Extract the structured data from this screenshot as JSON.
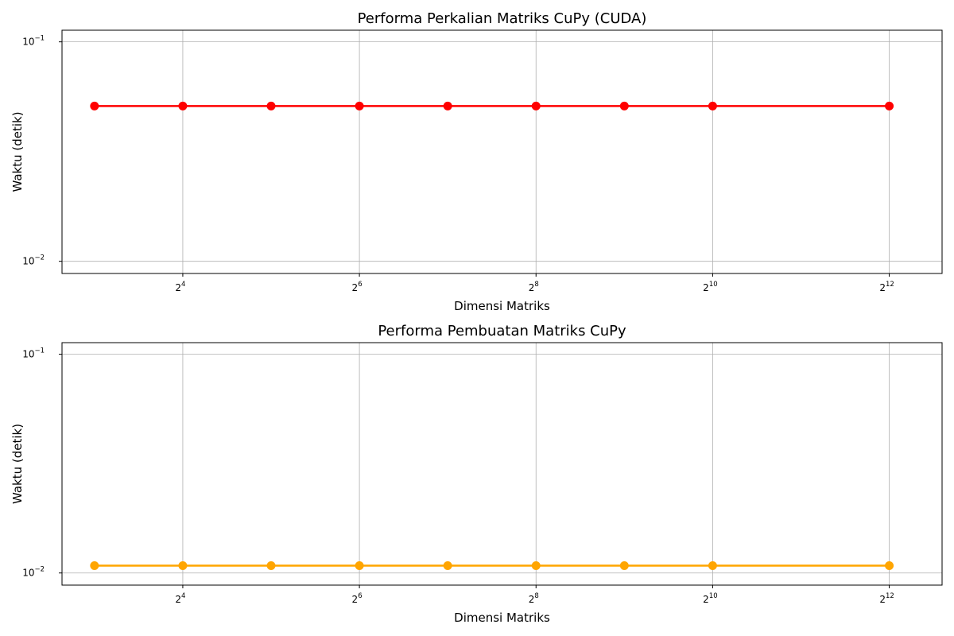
{
  "chart_data": [
    {
      "type": "line",
      "title": "Performa Perkalian Matriks CuPy (CUDA)",
      "xlabel": "Dimensi Matriks",
      "ylabel": "Waktu (detik)",
      "xscale": "log2",
      "yscale": "log10",
      "grid": true,
      "xlim": [
        6.2,
        6200
      ],
      "ylim": [
        0.0088,
        0.113
      ],
      "x": [
        8,
        16,
        32,
        64,
        128,
        256,
        512,
        1024,
        4096
      ],
      "x_ticks": [
        {
          "base": "2",
          "exp": "4",
          "value": 16
        },
        {
          "base": "2",
          "exp": "6",
          "value": 64
        },
        {
          "base": "2",
          "exp": "8",
          "value": 256
        },
        {
          "base": "2",
          "exp": "10",
          "value": 1024
        },
        {
          "base": "2",
          "exp": "12",
          "value": 4096
        }
      ],
      "y_ticks": [
        {
          "base": "10",
          "exp": "−1",
          "value": 0.1
        },
        {
          "base": "10",
          "exp": "−2",
          "value": 0.01
        }
      ],
      "series": [
        {
          "color": "#ff0000",
          "values": [
            0.051,
            0.051,
            0.051,
            0.051,
            0.051,
            0.051,
            0.051,
            0.051,
            0.051
          ]
        }
      ]
    },
    {
      "type": "line",
      "title": "Performa Pembuatan Matriks CuPy",
      "xlabel": "Dimensi Matriks",
      "ylabel": "Waktu (detik)",
      "xscale": "log2",
      "yscale": "log10",
      "grid": true,
      "xlim": [
        6.2,
        6200
      ],
      "ylim": [
        0.0088,
        0.113
      ],
      "x": [
        8,
        16,
        32,
        64,
        128,
        256,
        512,
        1024,
        4096
      ],
      "x_ticks": [
        {
          "base": "2",
          "exp": "4",
          "value": 16
        },
        {
          "base": "2",
          "exp": "6",
          "value": 64
        },
        {
          "base": "2",
          "exp": "8",
          "value": 256
        },
        {
          "base": "2",
          "exp": "10",
          "value": 1024
        },
        {
          "base": "2",
          "exp": "12",
          "value": 4096
        }
      ],
      "y_ticks": [
        {
          "base": "10",
          "exp": "−1",
          "value": 0.1
        },
        {
          "base": "10",
          "exp": "−2",
          "value": 0.01
        }
      ],
      "series": [
        {
          "color": "#ffa500",
          "values": [
            0.0108,
            0.0108,
            0.0108,
            0.0108,
            0.0108,
            0.0108,
            0.0108,
            0.0108,
            0.0108
          ]
        }
      ]
    }
  ]
}
